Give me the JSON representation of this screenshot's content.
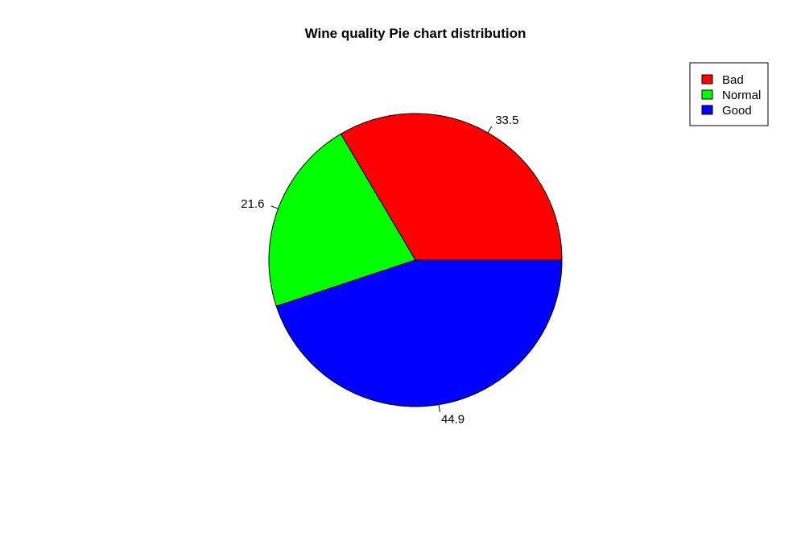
{
  "chart_data": {
    "type": "pie",
    "title": "Wine quality Pie chart distribution",
    "categories": [
      "Bad",
      "Normal",
      "Good"
    ],
    "values": [
      33.5,
      21.6,
      44.9
    ],
    "labels": [
      "33.5",
      "21.6",
      "44.9"
    ],
    "colors": [
      "#ff0000",
      "#00ff00",
      "#0000ff"
    ],
    "start_angle_deg": 0,
    "direction": "counterclockwise",
    "legend": {
      "position": "top-right",
      "entries": [
        "Bad",
        "Normal",
        "Good"
      ]
    }
  }
}
